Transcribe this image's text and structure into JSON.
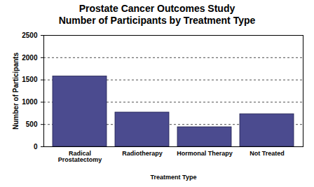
{
  "chart_data": {
    "type": "bar",
    "title": "Prostate Cancer Outcomes Study",
    "subtitle": "Number of Participants by Treatment Type",
    "x_label": "Treatment Type",
    "y_label": "Number of Participants",
    "categories": [
      "Radical Prostatectomy",
      "Radiotherapy",
      "Hormonal Therapy",
      "Not Treated"
    ],
    "values": [
      1580,
      770,
      440,
      730
    ],
    "color": "#4b4b8f",
    "ylim": [
      0,
      2500
    ],
    "yticks": [
      0,
      500,
      1000,
      1500,
      2000,
      2500
    ],
    "grid": true
  }
}
